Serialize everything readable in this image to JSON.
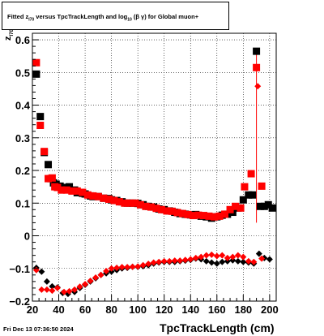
{
  "title": {
    "prefix": "Fitted  z",
    "sub1": "I70",
    "middle": "  versus TpcTrackLength and log",
    "sub2": "10",
    "suffix": " (β  γ) for Global muon+"
  },
  "footer": "Fri Dec 13 07:36:50 2024",
  "chart_data": {
    "type": "scatter",
    "xlabel": "TpcTrackLength (cm)",
    "ylabel": "z",
    "ylabel_sub": "I70",
    "xlim": [
      20,
      205
    ],
    "ylim": [
      -0.2,
      0.62
    ],
    "grid": true,
    "x_ticks": [
      20,
      40,
      60,
      80,
      100,
      120,
      140,
      160,
      180,
      200
    ],
    "y_ticks": [
      -0.2,
      -0.1,
      0,
      0.1,
      0.2,
      0.3,
      0.4,
      0.5,
      0.6
    ],
    "x_tick_labels": [
      "20",
      "40",
      "60",
      "80",
      "100",
      "120",
      "140",
      "160",
      "180",
      "200"
    ],
    "y_tick_labels": [
      "−0.2",
      "−0.1",
      "0",
      "0.1",
      "0.2",
      "0.3",
      "0.4",
      "0.5",
      "0.6"
    ],
    "series": [
      {
        "marker": "square",
        "color": "#000000",
        "points": [
          [
            23,
            0.495
          ],
          [
            26,
            0.365
          ],
          [
            29,
            0.255
          ],
          [
            32,
            0.218
          ],
          [
            34,
            0.175
          ],
          [
            36,
            0.162
          ],
          [
            38,
            0.158
          ],
          [
            41,
            0.152
          ],
          [
            44,
            0.148
          ],
          [
            46,
            0.145
          ],
          [
            48,
            0.15
          ],
          [
            52,
            0.14
          ],
          [
            54,
            0.132
          ],
          [
            58,
            0.13
          ],
          [
            60,
            0.128
          ],
          [
            64,
            0.122
          ],
          [
            66,
            0.12
          ],
          [
            70,
            0.12
          ],
          [
            74,
            0.115
          ],
          [
            78,
            0.114
          ],
          [
            80,
            0.11
          ],
          [
            84,
            0.108
          ],
          [
            88,
            0.104
          ],
          [
            92,
            0.1
          ],
          [
            96,
            0.1
          ],
          [
            100,
            0.099
          ],
          [
            104,
            0.095
          ],
          [
            108,
            0.09
          ],
          [
            112,
            0.088
          ],
          [
            116,
            0.082
          ],
          [
            120,
            0.08
          ],
          [
            124,
            0.076
          ],
          [
            128,
            0.072
          ],
          [
            132,
            0.068
          ],
          [
            136,
            0.066
          ],
          [
            140,
            0.064
          ],
          [
            144,
            0.065
          ],
          [
            148,
            0.06
          ],
          [
            152,
            0.058
          ],
          [
            156,
            0.054
          ],
          [
            160,
            0.058
          ],
          [
            164,
            0.063
          ],
          [
            168,
            0.066
          ],
          [
            172,
            0.072
          ],
          [
            176,
            0.085
          ],
          [
            180,
            0.11
          ],
          [
            184,
            0.125
          ],
          [
            187,
            0.125
          ],
          [
            190,
            0.565
          ],
          [
            193,
            0.09
          ],
          [
            196,
            0.09
          ],
          [
            199,
            0.095
          ],
          [
            202,
            0.085
          ]
        ]
      },
      {
        "marker": "square",
        "color": "#ff0000",
        "points": [
          [
            23,
            0.53
          ],
          [
            26,
            0.338
          ],
          [
            29,
            0.258
          ],
          [
            32,
            0.175
          ],
          [
            35,
            0.177
          ],
          [
            37,
            0.15
          ],
          [
            39,
            0.148
          ],
          [
            42,
            0.14
          ],
          [
            46,
            0.14
          ],
          [
            50,
            0.137
          ],
          [
            54,
            0.137
          ],
          [
            58,
            0.133
          ],
          [
            62,
            0.125
          ],
          [
            66,
            0.122
          ],
          [
            70,
            0.12
          ],
          [
            74,
            0.115
          ],
          [
            78,
            0.112
          ],
          [
            82,
            0.108
          ],
          [
            86,
            0.104
          ],
          [
            90,
            0.1
          ],
          [
            94,
            0.1
          ],
          [
            98,
            0.1
          ],
          [
            102,
            0.095
          ],
          [
            106,
            0.09
          ],
          [
            110,
            0.088
          ],
          [
            114,
            0.084
          ],
          [
            118,
            0.08
          ],
          [
            122,
            0.076
          ],
          [
            126,
            0.075
          ],
          [
            130,
            0.071
          ],
          [
            134,
            0.068
          ],
          [
            138,
            0.065
          ],
          [
            142,
            0.062
          ],
          [
            146,
            0.063
          ],
          [
            150,
            0.062
          ],
          [
            154,
            0.06
          ],
          [
            158,
            0.058
          ],
          [
            162,
            0.06
          ],
          [
            166,
            0.066
          ],
          [
            170,
            0.08
          ],
          [
            174,
            0.09
          ],
          [
            178,
            0.085
          ],
          [
            181,
            0.15
          ],
          [
            186,
            0.19
          ],
          [
            190,
            0.515
          ],
          [
            194,
            0.152
          ]
        ],
        "error_bar_at_x": 190,
        "error_bar_range": [
          0.04,
          0.57
        ]
      },
      {
        "marker": "diamond",
        "color": "#000000",
        "points": [
          [
            23,
            -0.098
          ],
          [
            27,
            -0.11
          ],
          [
            31,
            -0.14
          ],
          [
            35,
            -0.155
          ],
          [
            39,
            -0.158
          ],
          [
            43,
            -0.175
          ],
          [
            47,
            -0.178
          ],
          [
            52,
            -0.172
          ],
          [
            56,
            -0.16
          ],
          [
            60,
            -0.15
          ],
          [
            64,
            -0.14
          ],
          [
            68,
            -0.13
          ],
          [
            72,
            -0.12
          ],
          [
            76,
            -0.115
          ],
          [
            80,
            -0.11
          ],
          [
            84,
            -0.105
          ],
          [
            88,
            -0.1
          ],
          [
            92,
            -0.098
          ],
          [
            96,
            -0.095
          ],
          [
            100,
            -0.095
          ],
          [
            104,
            -0.093
          ],
          [
            108,
            -0.09
          ],
          [
            112,
            -0.085
          ],
          [
            116,
            -0.082
          ],
          [
            120,
            -0.08
          ],
          [
            124,
            -0.08
          ],
          [
            128,
            -0.08
          ],
          [
            132,
            -0.078
          ],
          [
            136,
            -0.076
          ],
          [
            140,
            -0.074
          ],
          [
            144,
            -0.07
          ],
          [
            148,
            -0.072
          ],
          [
            152,
            -0.078
          ],
          [
            156,
            -0.082
          ],
          [
            160,
            -0.085
          ],
          [
            164,
            -0.08
          ],
          [
            168,
            -0.078
          ],
          [
            172,
            -0.075
          ],
          [
            176,
            -0.078
          ],
          [
            180,
            -0.08
          ],
          [
            184,
            -0.082
          ],
          [
            188,
            -0.085
          ],
          [
            192,
            -0.055
          ],
          [
            196,
            -0.068
          ],
          [
            200,
            -0.072
          ]
        ]
      },
      {
        "marker": "diamond",
        "color": "#ff0000",
        "points": [
          [
            23,
            -0.105
          ],
          [
            27,
            -0.165
          ],
          [
            31,
            -0.165
          ],
          [
            35,
            -0.168
          ],
          [
            39,
            -0.16
          ],
          [
            44,
            -0.172
          ],
          [
            48,
            -0.17
          ],
          [
            52,
            -0.165
          ],
          [
            56,
            -0.156
          ],
          [
            60,
            -0.148
          ],
          [
            64,
            -0.138
          ],
          [
            68,
            -0.128
          ],
          [
            72,
            -0.12
          ],
          [
            76,
            -0.108
          ],
          [
            80,
            -0.1
          ],
          [
            84,
            -0.098
          ],
          [
            88,
            -0.096
          ],
          [
            92,
            -0.096
          ],
          [
            96,
            -0.095
          ],
          [
            100,
            -0.094
          ],
          [
            104,
            -0.09
          ],
          [
            108,
            -0.086
          ],
          [
            112,
            -0.082
          ],
          [
            116,
            -0.08
          ],
          [
            120,
            -0.078
          ],
          [
            124,
            -0.078
          ],
          [
            128,
            -0.076
          ],
          [
            132,
            -0.076
          ],
          [
            136,
            -0.074
          ],
          [
            140,
            -0.072
          ],
          [
            144,
            -0.068
          ],
          [
            148,
            -0.065
          ],
          [
            152,
            -0.06
          ],
          [
            156,
            -0.058
          ],
          [
            160,
            -0.062
          ],
          [
            164,
            -0.06
          ],
          [
            168,
            -0.068
          ],
          [
            172,
            -0.065
          ],
          [
            176,
            -0.06
          ],
          [
            180,
            -0.065
          ],
          [
            184,
            -0.078
          ],
          [
            188,
            -0.08
          ],
          [
            191,
            0.458
          ],
          [
            194,
            -0.07
          ]
        ]
      }
    ]
  }
}
